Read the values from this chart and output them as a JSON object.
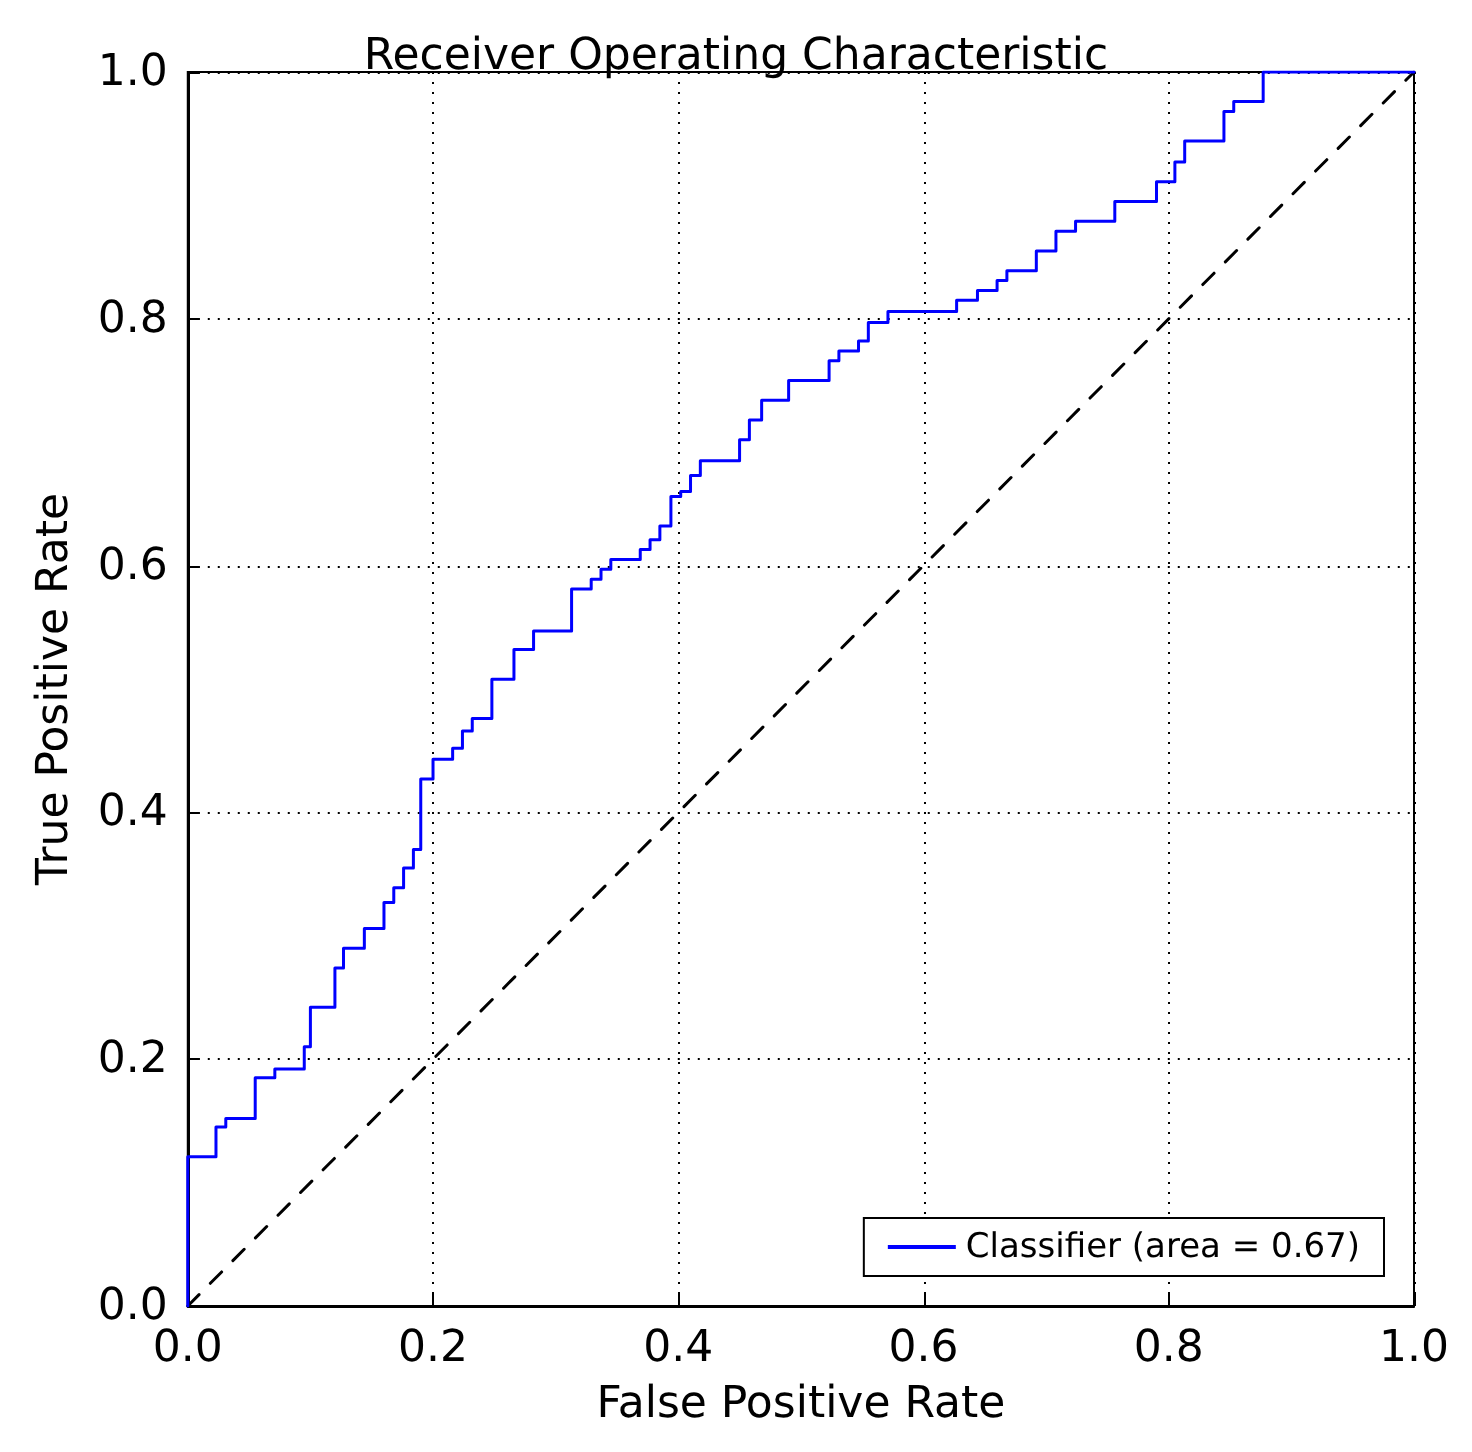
{
  "chart_data": {
    "type": "step",
    "title": "Receiver Operating Characteristic",
    "xlabel": "False Positive Rate",
    "ylabel": "True Positive Rate",
    "xlim": [
      0,
      1
    ],
    "ylim": [
      0,
      1
    ],
    "xticks": [
      {
        "value": 0,
        "label": "0.0"
      },
      {
        "value": 0.2,
        "label": "0.2"
      },
      {
        "value": 0.4,
        "label": "0.4"
      },
      {
        "value": 0.6,
        "label": "0.6"
      },
      {
        "value": 0.8,
        "label": "0.8"
      },
      {
        "value": 1,
        "label": "1.0"
      }
    ],
    "yticks": [
      {
        "value": 0,
        "label": "0.0"
      },
      {
        "value": 0.2,
        "label": "0.2"
      },
      {
        "value": 0.4,
        "label": "0.4"
      },
      {
        "value": 0.6,
        "label": "0.6"
      },
      {
        "value": 0.8,
        "label": "0.8"
      },
      {
        "value": 1,
        "label": "1.0"
      }
    ],
    "grid": true,
    "legend": "bottom right",
    "marker": "none",
    "series": [
      {
        "name": "Classifier (area = 0.67)",
        "color": "#0000ff",
        "line_style": "solid",
        "x": [
          0,
          0,
          0.023,
          0.031,
          0.055,
          0.071,
          0.095,
          0.1,
          0.12,
          0.127,
          0.144,
          0.16,
          0.168,
          0.176,
          0.184,
          0.19,
          0.2,
          0.216,
          0.224,
          0.232,
          0.248,
          0.266,
          0.282,
          0.313,
          0.329,
          0.337,
          0.345,
          0.369,
          0.377,
          0.385,
          0.394,
          0.402,
          0.41,
          0.418,
          0.45,
          0.458,
          0.468,
          0.49,
          0.523,
          0.531,
          0.547,
          0.555,
          0.571,
          0.627,
          0.644,
          0.66,
          0.668,
          0.692,
          0.708,
          0.724,
          0.756,
          0.79,
          0.805,
          0.813,
          0.845,
          0.853,
          0.877,
          1
        ],
        "values": [
          0,
          0.121,
          0.145,
          0.152,
          0.185,
          0.192,
          0.21,
          0.242,
          0.274,
          0.29,
          0.306,
          0.327,
          0.339,
          0.355,
          0.37,
          0.427,
          0.443,
          0.452,
          0.466,
          0.476,
          0.508,
          0.532,
          0.547,
          0.581,
          0.589,
          0.597,
          0.605,
          0.613,
          0.621,
          0.632,
          0.656,
          0.66,
          0.673,
          0.685,
          0.702,
          0.718,
          0.734,
          0.75,
          0.766,
          0.774,
          0.782,
          0.797,
          0.806,
          0.815,
          0.823,
          0.831,
          0.839,
          0.855,
          0.871,
          0.879,
          0.895,
          0.911,
          0.927,
          0.944,
          0.968,
          0.976,
          1,
          1
        ]
      },
      {
        "type": "line",
        "color": "#000000",
        "line_style": "dashed",
        "x": [
          0,
          1
        ],
        "values": [
          0,
          1
        ]
      }
    ]
  }
}
